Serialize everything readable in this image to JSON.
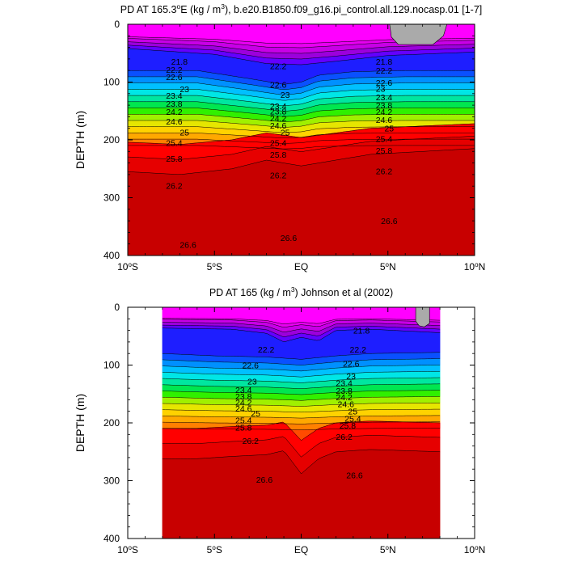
{
  "chart_data": [
    {
      "type": "contour",
      "title_prefix": "PD AT 165.3",
      "title_deg": "o",
      "title_mid": "E (kg / m",
      "title_exp": "3",
      "title_suffix": "), b.e20.B1850.f09_g16.pi_control.all.129.nocasp.01 [1-7]",
      "ylabel": "DEPTH (m)",
      "x_range": [
        -10,
        10
      ],
      "y_range": [
        0,
        400
      ],
      "data_x_range": [
        -10,
        10
      ],
      "x_ticks": [
        {
          "value": -10,
          "num": "10",
          "deg": "o",
          "hem": "S"
        },
        {
          "value": -5,
          "num": "5",
          "deg": "o",
          "hem": "S"
        },
        {
          "value": 0,
          "num": "EQ",
          "deg": "",
          "hem": ""
        },
        {
          "value": 5,
          "num": "5",
          "deg": "o",
          "hem": "N"
        },
        {
          "value": 10,
          "num": "10",
          "deg": "o",
          "hem": "N"
        }
      ],
      "y_ticks": [
        "0",
        "100",
        "200",
        "300",
        "400"
      ],
      "y_tick_values": [
        0,
        100,
        200,
        300,
        400
      ],
      "contour_levels": [
        21.8,
        22.2,
        22.6,
        23,
        23.4,
        23.8,
        24.2,
        24.6,
        25,
        25.4,
        25.8,
        26.2,
        26.6
      ],
      "contour_labels": [
        {
          "text": "21.8",
          "x": -7.5,
          "y": 64
        },
        {
          "text": "22.2",
          "x": -7.8,
          "y": 78
        },
        {
          "text": "22.6",
          "x": -7.8,
          "y": 91
        },
        {
          "text": "23",
          "x": -7.0,
          "y": 112
        },
        {
          "text": "23.4",
          "x": -7.8,
          "y": 123
        },
        {
          "text": "23.8",
          "x": -7.8,
          "y": 137
        },
        {
          "text": "24.2",
          "x": -7.8,
          "y": 151
        },
        {
          "text": "24.6",
          "x": -7.8,
          "y": 168
        },
        {
          "text": "25",
          "x": -7.0,
          "y": 187
        },
        {
          "text": "25.4",
          "x": -7.8,
          "y": 205
        },
        {
          "text": "25.8",
          "x": -7.8,
          "y": 232
        },
        {
          "text": "26.2",
          "x": -7.8,
          "y": 279
        },
        {
          "text": "26.6",
          "x": -7.0,
          "y": 381
        },
        {
          "text": "22.2",
          "x": -1.8,
          "y": 72
        },
        {
          "text": "22.6",
          "x": -1.8,
          "y": 104
        },
        {
          "text": "23",
          "x": -1.2,
          "y": 122
        },
        {
          "text": "23.4",
          "x": -1.8,
          "y": 141
        },
        {
          "text": "23.8",
          "x": -1.8,
          "y": 150
        },
        {
          "text": "24.2",
          "x": -1.8,
          "y": 162
        },
        {
          "text": "24.6",
          "x": -1.8,
          "y": 175
        },
        {
          "text": "25",
          "x": -1.2,
          "y": 187
        },
        {
          "text": "25.4",
          "x": -1.8,
          "y": 205
        },
        {
          "text": "25.8",
          "x": -1.8,
          "y": 225
        },
        {
          "text": "26.2",
          "x": -1.8,
          "y": 261
        },
        {
          "text": "26.6",
          "x": -1.2,
          "y": 369
        },
        {
          "text": "21.8",
          "x": 4.3,
          "y": 64
        },
        {
          "text": "22.2",
          "x": 4.3,
          "y": 80
        },
        {
          "text": "22.6",
          "x": 4.3,
          "y": 101
        },
        {
          "text": "23",
          "x": 4.3,
          "y": 111
        },
        {
          "text": "23.4",
          "x": 4.3,
          "y": 126
        },
        {
          "text": "23.8",
          "x": 4.3,
          "y": 140
        },
        {
          "text": "24.2",
          "x": 4.3,
          "y": 151
        },
        {
          "text": "24.6",
          "x": 4.3,
          "y": 165
        },
        {
          "text": "25",
          "x": 4.8,
          "y": 180
        },
        {
          "text": "25.4",
          "x": 4.3,
          "y": 198
        },
        {
          "text": "25.8",
          "x": 4.3,
          "y": 218
        },
        {
          "text": "26.2",
          "x": 4.3,
          "y": 254
        },
        {
          "text": "26.6",
          "x": 4.6,
          "y": 340
        }
      ],
      "gray_region": "5.1N-8.4N, 0-35m"
    },
    {
      "type": "contour",
      "title_prefix": "PD AT 165 (kg / m",
      "title_exp": "3",
      "title_suffix": ") Johnson et al (2002)",
      "ylabel": "DEPTH (m)",
      "x_range": [
        -10,
        10
      ],
      "y_range": [
        0,
        400
      ],
      "data_x_range": [
        -8,
        8
      ],
      "x_ticks": [
        {
          "value": -10,
          "num": "10",
          "deg": "o",
          "hem": "S"
        },
        {
          "value": -5,
          "num": "5",
          "deg": "o",
          "hem": "S"
        },
        {
          "value": 0,
          "num": "EQ",
          "deg": "",
          "hem": ""
        },
        {
          "value": 5,
          "num": "5",
          "deg": "o",
          "hem": "N"
        },
        {
          "value": 10,
          "num": "10",
          "deg": "o",
          "hem": "N"
        }
      ],
      "y_ticks": [
        "0",
        "100",
        "200",
        "300",
        "400"
      ],
      "y_tick_values": [
        0,
        100,
        200,
        300,
        400
      ],
      "contour_levels": [
        21.8,
        22.2,
        22.6,
        23,
        23.4,
        23.8,
        24.2,
        24.6,
        25,
        25.4,
        25.8,
        26.2,
        26.6
      ],
      "contour_labels": [
        {
          "text": "22.2",
          "x": -2.5,
          "y": 73
        },
        {
          "text": "22.6",
          "x": -3.4,
          "y": 100
        },
        {
          "text": "23",
          "x": -3.1,
          "y": 128
        },
        {
          "text": "23.4",
          "x": -3.8,
          "y": 143
        },
        {
          "text": "23.8",
          "x": -3.8,
          "y": 154
        },
        {
          "text": "24.2",
          "x": -3.8,
          "y": 164
        },
        {
          "text": "24.6",
          "x": -3.8,
          "y": 175
        },
        {
          "text": "25",
          "x": -2.9,
          "y": 183
        },
        {
          "text": "25.4",
          "x": -3.8,
          "y": 195
        },
        {
          "text": "25.8",
          "x": -3.8,
          "y": 208
        },
        {
          "text": "26.2",
          "x": -3.4,
          "y": 231
        },
        {
          "text": "26.6",
          "x": -2.6,
          "y": 298
        },
        {
          "text": "21.8",
          "x": 3.0,
          "y": 40
        },
        {
          "text": "22.2",
          "x": 2.8,
          "y": 73
        },
        {
          "text": "22.6",
          "x": 2.4,
          "y": 97
        },
        {
          "text": "23",
          "x": 2.6,
          "y": 119
        },
        {
          "text": "23.4",
          "x": 2.0,
          "y": 131
        },
        {
          "text": "23.8",
          "x": 2.0,
          "y": 144
        },
        {
          "text": "24.2",
          "x": 2.0,
          "y": 155
        },
        {
          "text": "24.6",
          "x": 2.1,
          "y": 167
        },
        {
          "text": "25",
          "x": 2.7,
          "y": 180
        },
        {
          "text": "25.4",
          "x": 2.5,
          "y": 192
        },
        {
          "text": "25.8",
          "x": 2.2,
          "y": 204
        },
        {
          "text": "26.2",
          "x": 2.0,
          "y": 224
        },
        {
          "text": "26.6",
          "x": 2.6,
          "y": 290
        }
      ],
      "gray_region": "6.6N-7.4N, 0-35m"
    }
  ]
}
